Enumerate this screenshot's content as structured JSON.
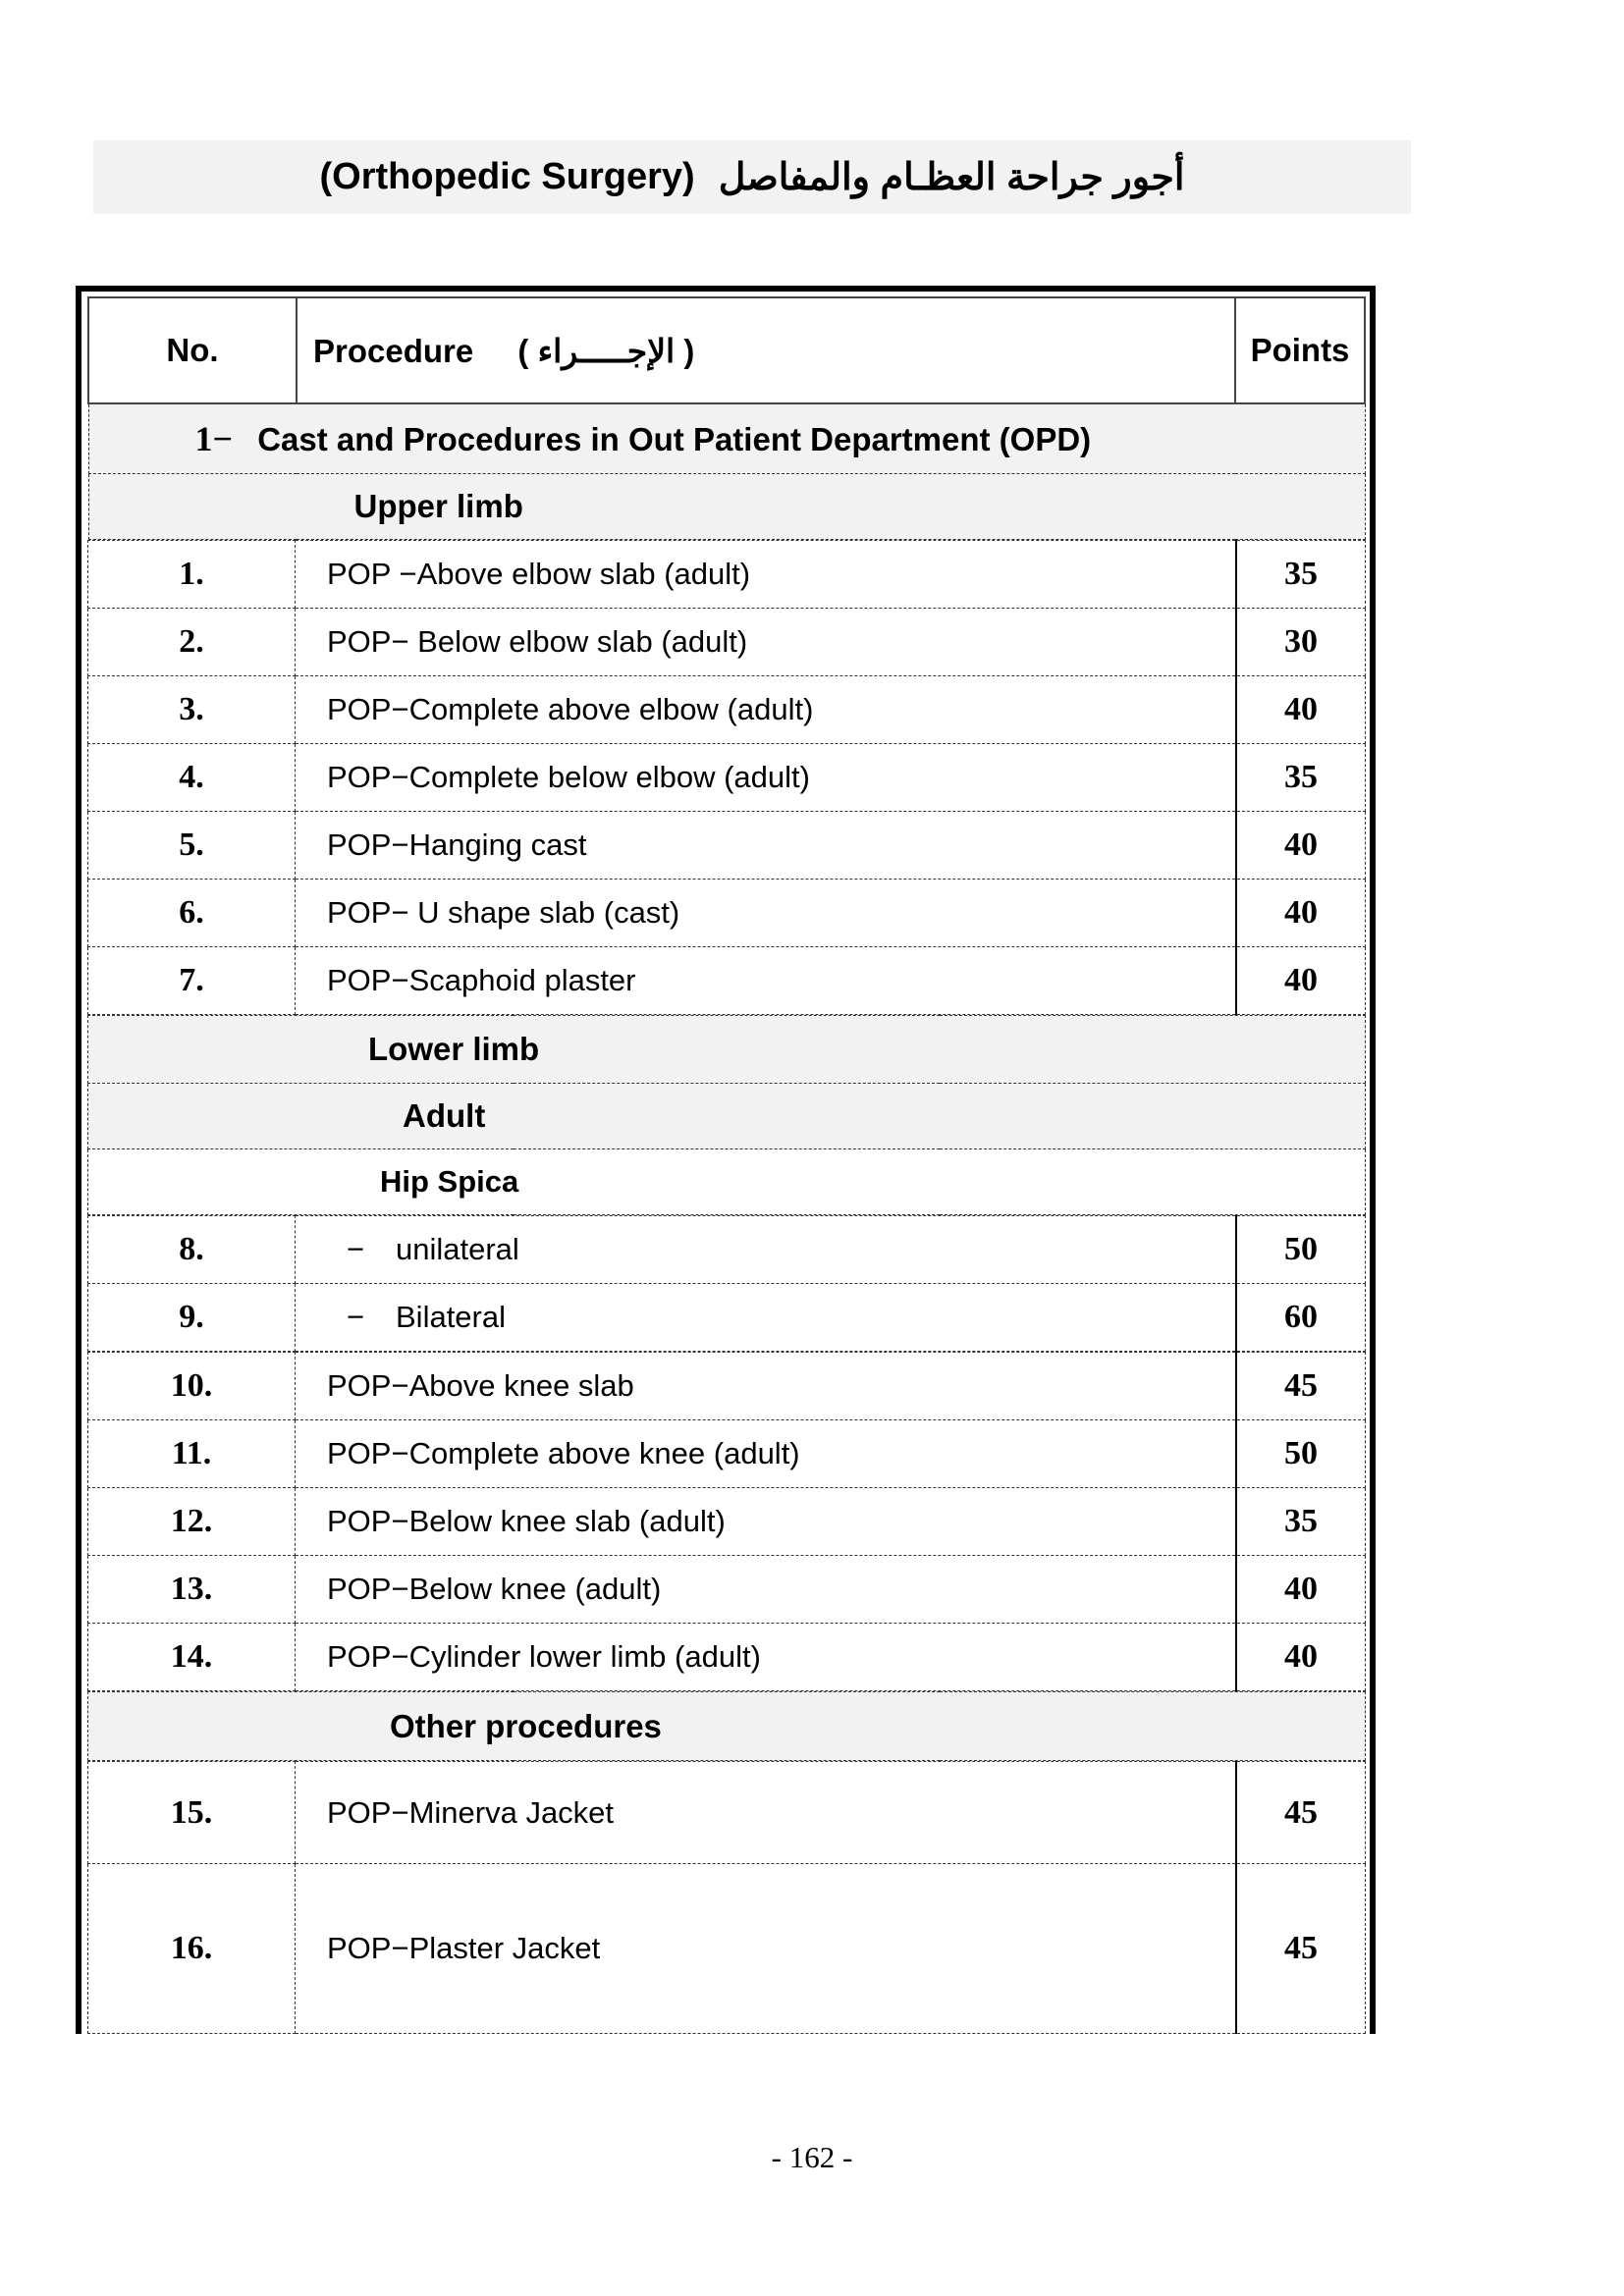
{
  "title": {
    "english": "(Orthopedic Surgery)",
    "arabic": "أجور جراحة العظـام والمفاصل"
  },
  "table": {
    "headers": {
      "no": "No.",
      "procedure": "Procedure",
      "procedure_ar": "( الإجـــــراء )",
      "points": "Points"
    },
    "section": {
      "number": "1−",
      "label": "Cast and Procedures in Out Patient Department (OPD)"
    },
    "upper_limb": "Upper limb",
    "upper_rows": [
      {
        "no": "1.",
        "procedure": "POP −Above elbow slab (adult)",
        "points": "35"
      },
      {
        "no": "2.",
        "procedure": "POP− Below elbow slab (adult)",
        "points": "30"
      },
      {
        "no": "3.",
        "procedure": "POP−Complete above elbow (adult)",
        "points": "40"
      },
      {
        "no": "4.",
        "procedure": "POP−Complete below elbow (adult)",
        "points": "35"
      },
      {
        "no": "5.",
        "procedure": "POP−Hanging cast",
        "points": "40"
      },
      {
        "no": "6.",
        "procedure": "POP− U shape slab (cast)",
        "points": "40"
      },
      {
        "no": "7.",
        "procedure": "POP−Scaphoid plaster",
        "points": "40"
      }
    ],
    "lower_limb": "Lower limb",
    "adult": "Adult",
    "hip_spica": "Hip Spica",
    "hip_rows": [
      {
        "no": "8.",
        "dash": "−",
        "procedure": "unilateral",
        "points": "50"
      },
      {
        "no": "9.",
        "dash": "−",
        "procedure": "Bilateral",
        "points": "60"
      }
    ],
    "lower_rows": [
      {
        "no": "10.",
        "procedure": "POP−Above knee slab",
        "points": "45"
      },
      {
        "no": "11.",
        "procedure": "POP−Complete above knee (adult)",
        "points": "50"
      },
      {
        "no": "12.",
        "procedure": "POP−Below knee slab (adult)",
        "points": "35"
      },
      {
        "no": "13.",
        "procedure": "POP−Below knee (adult)",
        "points": "40"
      },
      {
        "no": "14.",
        "procedure": "POP−Cylinder lower limb (adult)",
        "points": "40"
      }
    ],
    "other": "Other procedures",
    "other_rows": [
      {
        "no": "15.",
        "procedure": "POP−Minerva Jacket",
        "points": "45"
      },
      {
        "no": "16.",
        "procedure": "POP−Plaster Jacket",
        "points": "45"
      }
    ]
  },
  "page_number": "- 162 -"
}
